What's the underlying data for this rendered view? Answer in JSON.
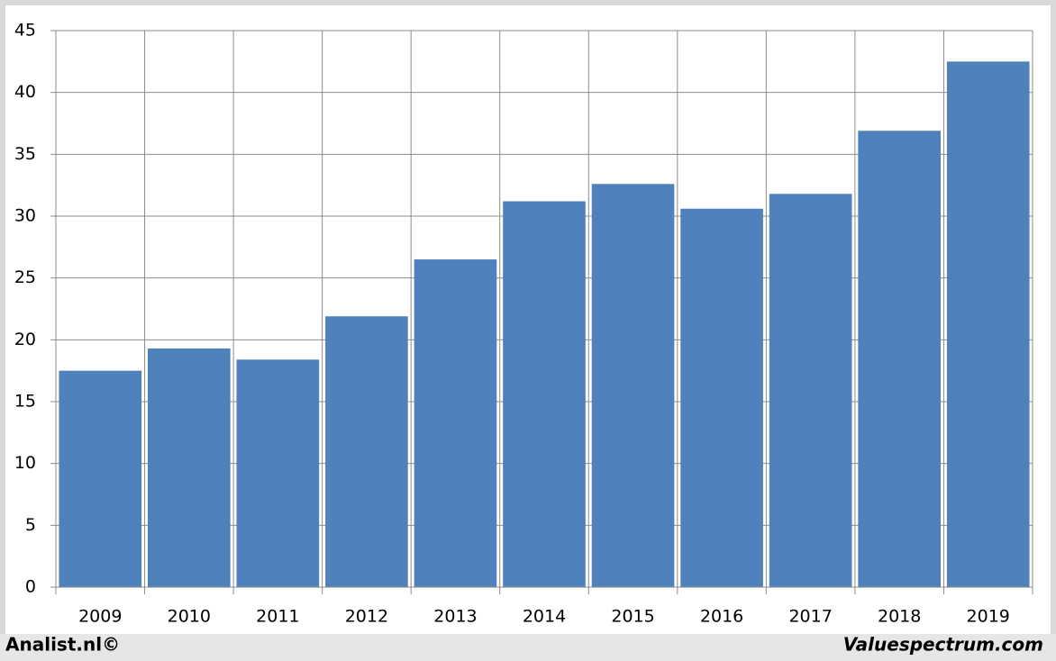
{
  "chart_data": {
    "type": "bar",
    "categories": [
      "2009",
      "2010",
      "2011",
      "2012",
      "2013",
      "2014",
      "2015",
      "2016",
      "2017",
      "2018",
      "2019"
    ],
    "values": [
      17.5,
      19.3,
      18.4,
      21.9,
      26.5,
      31.2,
      32.6,
      30.6,
      31.8,
      36.9,
      42.5
    ],
    "color": "#4f81bd",
    "ylim": [
      0,
      45
    ],
    "yticks": [
      0,
      5,
      10,
      15,
      20,
      25,
      30,
      35,
      40,
      45
    ],
    "grid": true,
    "annotations": [
      "Analist.nl©",
      "Valuespectrum.com"
    ]
  }
}
